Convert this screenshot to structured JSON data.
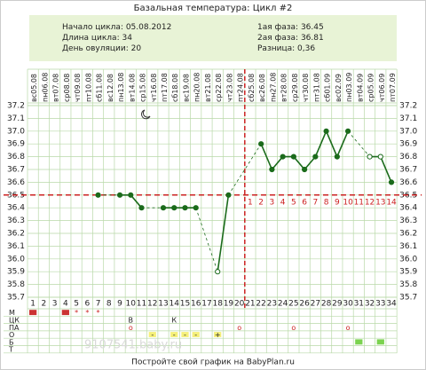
{
  "chart_data": {
    "type": "line",
    "title": "Базальная температура: Цикл #2",
    "info": [
      {
        "label": "Начало цикла:",
        "value": "05.08.2012"
      },
      {
        "label": "Длина цикла:",
        "value": 34
      },
      {
        "label": "День овуляции:",
        "value": 20
      },
      {
        "label": "1ая фаза:",
        "value": 36.45
      },
      {
        "label": "2ая фаза:",
        "value": 36.81
      },
      {
        "label": "Разница:",
        "value": "0,36"
      }
    ],
    "categories": [
      1,
      2,
      3,
      4,
      5,
      6,
      7,
      8,
      9,
      10,
      11,
      12,
      13,
      14,
      15,
      16,
      17,
      18,
      19,
      20,
      21,
      22,
      23,
      24,
      25,
      26,
      27,
      28,
      29,
      30,
      31,
      32,
      33,
      34
    ],
    "weekdays": [
      "вс",
      "пн",
      "вт",
      "ср",
      "чт",
      "пт",
      "сб",
      "вс",
      "пн",
      "вт",
      "ср",
      "чт",
      "пт",
      "сб",
      "вс",
      "пн",
      "вт",
      "ср",
      "чт",
      "пт",
      "сб",
      "вс",
      "пн",
      "вт",
      "ср",
      "чт",
      "пт",
      "сб",
      "вс",
      "пн",
      "вт",
      "ср",
      "чт",
      "пт"
    ],
    "dates": [
      "05.08",
      "06.08",
      "07.08",
      "08.08",
      "09.08",
      "10.08",
      "11.08",
      "12.08",
      "13.08",
      "14.08",
      "15.08",
      "16.08",
      "17.08",
      "18.08",
      "19.08",
      "20.08",
      "21.08",
      "22.08",
      "23.08",
      "24.08",
      "25.08",
      "26.08",
      "27.08",
      "28.08",
      "29.08",
      "30.08",
      "31.08",
      "01.09",
      "02.09",
      "03.09",
      "04.09",
      "05.09",
      "06.09",
      "07.09"
    ],
    "series": [
      {
        "color": "#1b6b1b",
        "values": [
          null,
          null,
          null,
          null,
          null,
          null,
          36.5,
          null,
          36.5,
          36.5,
          36.4,
          null,
          36.4,
          36.4,
          36.4,
          36.4,
          null,
          35.9,
          36.5,
          null,
          null,
          36.9,
          36.7,
          36.8,
          36.8,
          36.7,
          36.8,
          37.0,
          36.8,
          37.0,
          null,
          36.8,
          36.8,
          36.6
        ]
      }
    ],
    "excluded_days": [
      18,
      32,
      33
    ],
    "coverline": 36.5,
    "coverline_color": "#cc2222",
    "ovulation_day": 20,
    "luteal_day_labels": [
      1,
      2,
      3,
      4,
      5,
      6,
      7,
      8,
      9,
      10,
      11,
      12,
      13,
      14
    ],
    "ylim": [
      35.7,
      37.2
    ],
    "yticks": [
      35.7,
      35.8,
      35.9,
      {
        "value": 36.0,
        "label": "36.0"
      },
      36.1,
      36.2,
      36.3,
      36.4,
      36.5,
      36.6,
      36.7,
      36.8,
      36.9,
      {
        "value": 37.0,
        "label": "37.0"
      },
      37.1,
      37.2
    ],
    "grid": true,
    "rows": [
      {
        "label": "М",
        "cells": [
          {
            "day": 1,
            "fill": "#cc3333"
          },
          {
            "day": 4,
            "fill": "#cc3333"
          },
          {
            "day": 5,
            "text": "*",
            "color": "#cc2222"
          },
          {
            "day": 6,
            "text": "*",
            "color": "#cc2222"
          },
          {
            "day": 7,
            "text": "*",
            "color": "#cc2222"
          }
        ]
      },
      {
        "label": "ЦК",
        "cells": [
          {
            "day": 10,
            "text": "В",
            "color": "#222"
          },
          {
            "day": 14,
            "text": "К",
            "color": "#222"
          }
        ]
      },
      {
        "label": "ПА",
        "cells": [
          {
            "day": 10,
            "text": "o",
            "color": "#cc2222"
          },
          {
            "day": 20,
            "text": "o",
            "color": "#cc2222"
          },
          {
            "day": 25,
            "text": "o",
            "color": "#cc2222"
          },
          {
            "day": 30,
            "text": "o",
            "color": "#cc2222"
          }
        ]
      },
      {
        "label": "О",
        "cells": [
          {
            "day": 12,
            "text": "-",
            "fill": "#f5f07a",
            "color": "#222"
          },
          {
            "day": 14,
            "text": "-",
            "fill": "#f5f07a",
            "color": "#222"
          },
          {
            "day": 15,
            "text": "-",
            "fill": "#f5f07a",
            "color": "#222"
          },
          {
            "day": 16,
            "text": "-",
            "fill": "#f5f07a",
            "color": "#222"
          },
          {
            "day": 18,
            "text": "+",
            "fill": "#f5f07a",
            "color": "#222"
          }
        ]
      },
      {
        "label": "Б",
        "cells": [
          {
            "day": 31,
            "fill": "#7bd34f"
          },
          {
            "day": 33,
            "fill": "#7bd34f"
          }
        ]
      },
      {
        "label": "Т",
        "cells": []
      }
    ]
  },
  "watermark": "9107541.baby.ru",
  "footer": "Постройте свой график на BabyPlan.ru"
}
